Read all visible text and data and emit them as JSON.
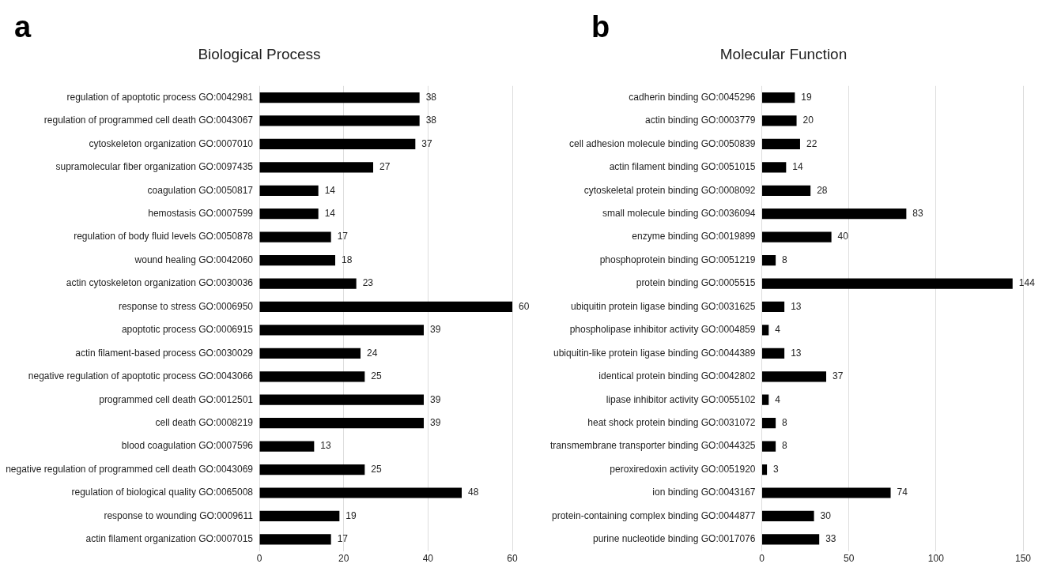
{
  "chart_data": [
    {
      "type": "bar",
      "orientation": "horizontal",
      "title": "Biological Process",
      "annotations": [
        "a"
      ],
      "categories": [
        "regulation of apoptotic process GO:0042981",
        "regulation of programmed cell death GO:0043067",
        "cytoskeleton organization GO:0007010",
        "supramolecular fiber organization GO:0097435",
        "coagulation GO:0050817",
        "hemostasis GO:0007599",
        "regulation of body fluid levels GO:0050878",
        "wound healing GO:0042060",
        "actin cytoskeleton organization GO:0030036",
        "response to stress GO:0006950",
        "apoptotic process GO:0006915",
        "actin filament-based process GO:0030029",
        "negative regulation of apoptotic process GO:0043066",
        "programmed cell death GO:0012501",
        "cell death GO:0008219",
        "blood coagulation GO:0007596",
        "negative regulation of programmed cell death GO:0043069",
        "regulation of biological quality GO:0065008",
        "response to wounding GO:0009611",
        "actin filament organization GO:0007015"
      ],
      "values": [
        38,
        38,
        37,
        27,
        14,
        14,
        17,
        18,
        23,
        60,
        39,
        24,
        25,
        39,
        39,
        13,
        25,
        48,
        19,
        17
      ],
      "color": "#000000",
      "xlim": [
        0,
        60
      ],
      "xticks": [
        0,
        20,
        40,
        60
      ],
      "grid": "x",
      "data_labels": true,
      "legend": false
    },
    {
      "type": "bar",
      "orientation": "horizontal",
      "title": "Molecular Function",
      "annotations": [
        "b"
      ],
      "categories": [
        "cadherin binding GO:0045296",
        "actin binding GO:0003779",
        "cell adhesion molecule binding GO:0050839",
        "actin filament binding GO:0051015",
        "cytoskeletal protein binding GO:0008092",
        "small molecule binding GO:0036094",
        "enzyme binding GO:0019899",
        "phosphoprotein binding GO:0051219",
        "protein binding GO:0005515",
        "ubiquitin protein ligase binding GO:0031625",
        "phospholipase inhibitor activity GO:0004859",
        "ubiquitin-like protein ligase binding GO:0044389",
        "identical protein binding GO:0042802",
        "lipase inhibitor activity GO:0055102",
        "heat shock protein binding GO:0031072",
        "transmembrane transporter binding GO:0044325",
        "peroxiredoxin activity GO:0051920",
        "ion binding GO:0043167",
        "protein-containing complex binding GO:0044877",
        "purine nucleotide binding GO:0017076"
      ],
      "values": [
        19,
        20,
        22,
        14,
        28,
        83,
        40,
        8,
        144,
        13,
        4,
        13,
        37,
        4,
        8,
        8,
        3,
        74,
        30,
        33
      ],
      "color": "#000000",
      "xlim": [
        0,
        150
      ],
      "xticks": [
        0,
        50,
        100,
        150
      ],
      "grid": "x",
      "data_labels": true,
      "legend": false
    }
  ]
}
